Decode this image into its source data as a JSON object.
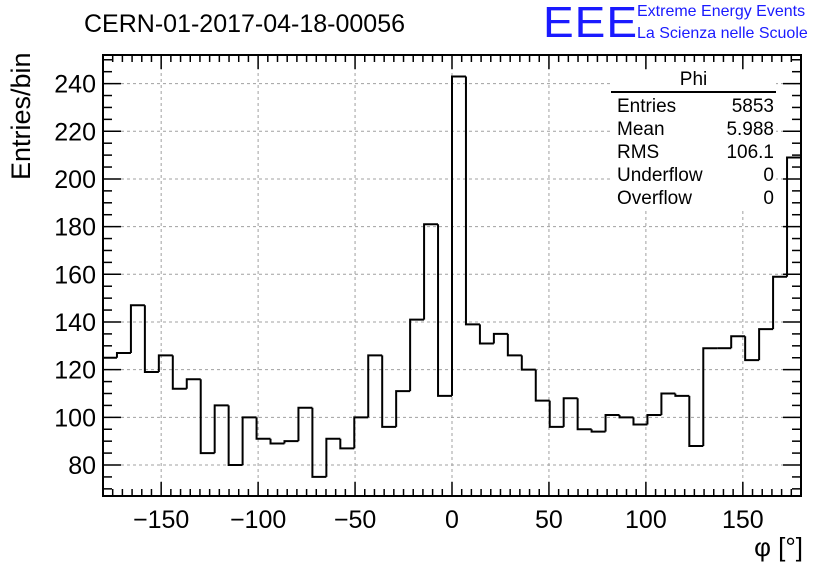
{
  "header": {
    "title": "CERN-01-2017-04-18-00056",
    "logo_text": "EEE",
    "logo_line1": "Extreme Energy Events",
    "logo_line2": "La Scienza nelle Scuole"
  },
  "stats": {
    "title": "Phi",
    "rows": [
      {
        "label": "Entries",
        "value": "5853"
      },
      {
        "label": "Mean",
        "value": "5.988"
      },
      {
        "label": "RMS",
        "value": "106.1"
      },
      {
        "label": "Underflow",
        "value": "0"
      },
      {
        "label": "Overflow",
        "value": "0"
      }
    ]
  },
  "chart_data": {
    "type": "bar",
    "style": "step-histogram",
    "title": "CERN-01-2017-04-18-00056",
    "xlabel": "φ [°]",
    "ylabel": "Entries/bin",
    "xlim": [
      -180,
      180
    ],
    "ylim": [
      67,
      252
    ],
    "bin_width": 7.2,
    "bin_edges_start": -180,
    "x_ticks": [
      -150,
      -100,
      -50,
      0,
      50,
      100,
      150
    ],
    "x_tick_labels": [
      "−150",
      "−100",
      "−50",
      "0",
      "50",
      "100",
      "150"
    ],
    "y_ticks": [
      80,
      100,
      120,
      140,
      160,
      180,
      200,
      220,
      240
    ],
    "y_tick_labels": [
      "80",
      "100",
      "120",
      "140",
      "160",
      "180",
      "200",
      "220",
      "240"
    ],
    "grid": true,
    "line_color": "#000000",
    "values": [
      125,
      127,
      147,
      119,
      126,
      112,
      116,
      85,
      105,
      80,
      100,
      91,
      89,
      90,
      104,
      75,
      91,
      87,
      100,
      126,
      96,
      111,
      141,
      181,
      109,
      243,
      139,
      131,
      135,
      126,
      120,
      107,
      96,
      108,
      95,
      94,
      101,
      100,
      97,
      101,
      110,
      109,
      88,
      129,
      129,
      134,
      124,
      137,
      159,
      209
    ]
  }
}
